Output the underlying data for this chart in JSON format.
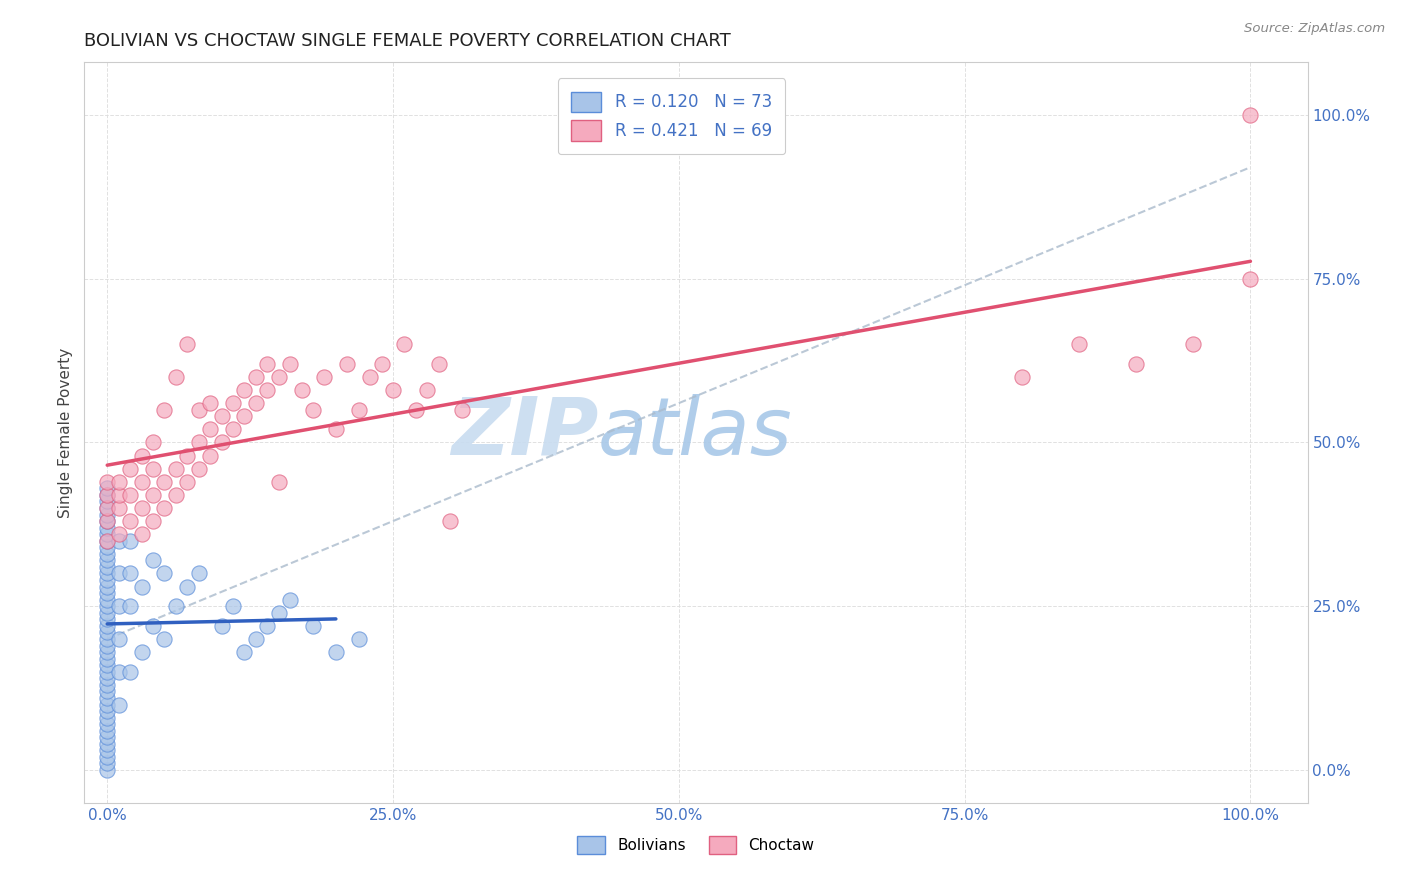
{
  "title": "BOLIVIAN VS CHOCTAW SINGLE FEMALE POVERTY CORRELATION CHART",
  "source": "Source: ZipAtlas.com",
  "ylabel": "Single Female Poverty",
  "r_bolivian": 0.12,
  "n_bolivian": 73,
  "r_choctaw": 0.421,
  "n_choctaw": 69,
  "color_bolivian_fill": "#A8C4E8",
  "color_bolivian_edge": "#5B8DD9",
  "color_choctaw_fill": "#F5AABE",
  "color_choctaw_edge": "#E06080",
  "color_bolivian_line": "#3060C0",
  "color_choctaw_line": "#E05070",
  "color_dashed": "#AABBCC",
  "watermark_color": "#C8DCF0",
  "background": "#FFFFFF",
  "xlim": [
    0.0,
    1.0
  ],
  "ylim": [
    0.0,
    1.0
  ],
  "xticks": [
    0.0,
    0.25,
    0.5,
    0.75,
    1.0
  ],
  "yticks": [
    0.0,
    0.25,
    0.5,
    0.75,
    1.0
  ],
  "bolivian_x": [
    0.0,
    0.0,
    0.0,
    0.0,
    0.0,
    0.0,
    0.0,
    0.0,
    0.0,
    0.0,
    0.0,
    0.0,
    0.0,
    0.0,
    0.0,
    0.0,
    0.0,
    0.0,
    0.0,
    0.0,
    0.0,
    0.0,
    0.0,
    0.0,
    0.0,
    0.0,
    0.0,
    0.0,
    0.0,
    0.0,
    0.0,
    0.0,
    0.0,
    0.0,
    0.0,
    0.0,
    0.0,
    0.0,
    0.0,
    0.0,
    0.0,
    0.0,
    0.0,
    0.0,
    0.01,
    0.01,
    0.01,
    0.01,
    0.01,
    0.01,
    0.02,
    0.02,
    0.02,
    0.02,
    0.03,
    0.03,
    0.04,
    0.04,
    0.05,
    0.05,
    0.06,
    0.07,
    0.08,
    0.1,
    0.11,
    0.12,
    0.13,
    0.14,
    0.15,
    0.16,
    0.18,
    0.2,
    0.22
  ],
  "bolivian_y": [
    0.0,
    0.01,
    0.02,
    0.03,
    0.04,
    0.05,
    0.06,
    0.07,
    0.08,
    0.09,
    0.1,
    0.11,
    0.12,
    0.13,
    0.14,
    0.15,
    0.16,
    0.17,
    0.18,
    0.19,
    0.2,
    0.21,
    0.22,
    0.23,
    0.24,
    0.25,
    0.26,
    0.27,
    0.28,
    0.29,
    0.3,
    0.31,
    0.32,
    0.33,
    0.34,
    0.35,
    0.36,
    0.37,
    0.38,
    0.39,
    0.4,
    0.41,
    0.42,
    0.43,
    0.1,
    0.15,
    0.2,
    0.25,
    0.3,
    0.35,
    0.15,
    0.25,
    0.3,
    0.35,
    0.18,
    0.28,
    0.22,
    0.32,
    0.2,
    0.3,
    0.25,
    0.28,
    0.3,
    0.22,
    0.25,
    0.18,
    0.2,
    0.22,
    0.24,
    0.26,
    0.22,
    0.18,
    0.2
  ],
  "choctaw_x": [
    0.0,
    0.0,
    0.0,
    0.0,
    0.0,
    0.01,
    0.01,
    0.01,
    0.01,
    0.02,
    0.02,
    0.02,
    0.03,
    0.03,
    0.03,
    0.03,
    0.04,
    0.04,
    0.04,
    0.04,
    0.05,
    0.05,
    0.05,
    0.06,
    0.06,
    0.06,
    0.07,
    0.07,
    0.07,
    0.08,
    0.08,
    0.08,
    0.09,
    0.09,
    0.09,
    0.1,
    0.1,
    0.11,
    0.11,
    0.12,
    0.12,
    0.13,
    0.13,
    0.14,
    0.14,
    0.15,
    0.15,
    0.16,
    0.17,
    0.18,
    0.19,
    0.2,
    0.21,
    0.22,
    0.23,
    0.24,
    0.25,
    0.26,
    0.27,
    0.28,
    0.29,
    0.3,
    0.31,
    0.8,
    0.85,
    0.9,
    0.95,
    1.0,
    1.0
  ],
  "choctaw_y": [
    0.38,
    0.4,
    0.42,
    0.44,
    0.35,
    0.36,
    0.4,
    0.42,
    0.44,
    0.38,
    0.42,
    0.46,
    0.36,
    0.4,
    0.44,
    0.48,
    0.38,
    0.42,
    0.46,
    0.5,
    0.4,
    0.44,
    0.55,
    0.42,
    0.46,
    0.6,
    0.44,
    0.48,
    0.65,
    0.46,
    0.5,
    0.55,
    0.48,
    0.52,
    0.56,
    0.5,
    0.54,
    0.52,
    0.56,
    0.54,
    0.58,
    0.56,
    0.6,
    0.58,
    0.62,
    0.44,
    0.6,
    0.62,
    0.58,
    0.55,
    0.6,
    0.52,
    0.62,
    0.55,
    0.6,
    0.62,
    0.58,
    0.65,
    0.55,
    0.58,
    0.62,
    0.38,
    0.55,
    0.6,
    0.65,
    0.62,
    0.65,
    0.75,
    1.0
  ]
}
